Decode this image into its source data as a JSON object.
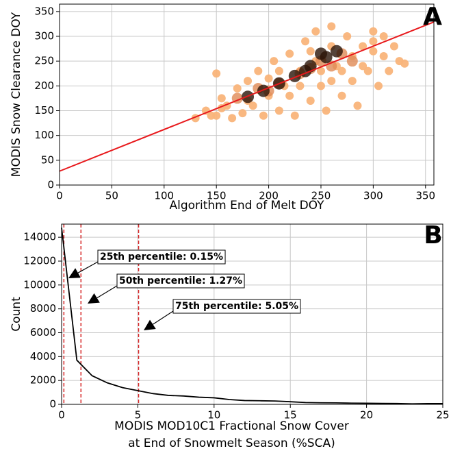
{
  "chart_data": [
    {
      "type": "scatter",
      "panel_label": "A",
      "xlabel": "Algorithm End of Melt DOY",
      "ylabel": "MODIS Snow Clearance DOY",
      "xlim": [
        0,
        358
      ],
      "xticks": [
        0,
        50,
        100,
        150,
        200,
        250,
        300,
        350
      ],
      "ylim": [
        0,
        365
      ],
      "yticks": [
        0,
        50,
        100,
        150,
        200,
        250,
        300,
        350
      ],
      "grid": true,
      "series": [
        {
          "color": "#f9b47a",
          "x": [
            130,
            140,
            150,
            155,
            150,
            160,
            165,
            170,
            175,
            180,
            185,
            190,
            195,
            200,
            205,
            210,
            215,
            220,
            225,
            230,
            235,
            240,
            245,
            250,
            255,
            260,
            265,
            270,
            275,
            280,
            285,
            290,
            295,
            300,
            305,
            310,
            315,
            320,
            325,
            330,
            240,
            260,
            280,
            300,
            220,
            200,
            180,
            260,
            250,
            270,
            290,
            210,
            230,
            245,
            155,
            145,
            300,
            310
          ],
          "y": [
            135,
            150,
            140,
            175,
            225,
            160,
            135,
            195,
            145,
            210,
            160,
            230,
            140,
            180,
            250,
            150,
            200,
            265,
            140,
            230,
            290,
            170,
            310,
            200,
            150,
            320,
            240,
            180,
            300,
            210,
            160,
            280,
            230,
            310,
            200,
            260,
            230,
            280,
            250,
            245,
            270,
            280,
            260,
            270,
            180,
            215,
            170,
            210,
            230,
            230,
            240,
            230,
            200,
            250,
            155,
            140,
            290,
            300
          ]
        },
        {
          "color": "#e08a55",
          "x": [
            170,
            190,
            210,
            230,
            250,
            270,
            260,
            200,
            240,
            280
          ],
          "y": [
            175,
            195,
            205,
            225,
            250,
            265,
            240,
            190,
            235,
            250
          ]
        },
        {
          "color": "#2b1408",
          "x": [
            180,
            195,
            210,
            225,
            240,
            255,
            265,
            250,
            235
          ],
          "y": [
            178,
            190,
            205,
            220,
            240,
            258,
            270,
            265,
            230
          ]
        }
      ],
      "fit": {
        "color": "#e8191c",
        "x": [
          0,
          358
        ],
        "y": [
          28,
          329
        ]
      }
    },
    {
      "type": "line",
      "panel_label": "B",
      "xlabel": [
        "MODIS MOD10C1 Fractional Snow Cover",
        "at End of Snowmelt Season (%SCA)"
      ],
      "ylabel": "Count",
      "xlim": [
        0,
        25
      ],
      "xticks": [
        0,
        5,
        10,
        15,
        20,
        25
      ],
      "ylim": [
        0,
        15100
      ],
      "yticks": [
        0,
        2000,
        4000,
        6000,
        8000,
        10000,
        12000,
        14000
      ],
      "grid": true,
      "color": "#000000",
      "x": [
        0,
        1,
        2,
        3,
        4,
        5,
        6,
        7,
        8,
        9,
        10,
        11,
        12,
        13,
        14,
        15,
        16,
        17,
        18,
        19,
        20,
        21,
        22,
        23,
        24,
        25
      ],
      "values": [
        14800,
        3700,
        2400,
        1800,
        1400,
        1150,
        900,
        750,
        700,
        600,
        550,
        400,
        320,
        300,
        280,
        220,
        150,
        130,
        120,
        100,
        90,
        80,
        70,
        40,
        60,
        60
      ],
      "vlines": [
        0.15,
        1.27,
        5.05
      ],
      "vline_color": "#d62728",
      "annotations": [
        "25th percentile: 0.15%",
        "50th percentile: 1.27%",
        "75th percentile: 5.05%"
      ]
    }
  ]
}
